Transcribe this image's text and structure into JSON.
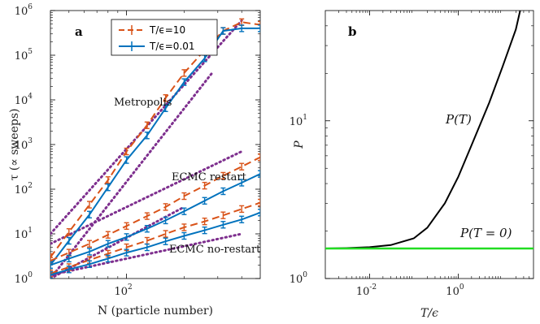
{
  "chart_data": [
    {
      "type": "line",
      "panel_label": "a",
      "xlabel": "N (particle number)",
      "ylabel": "τ (∝ sweeps)",
      "x_scale": "log",
      "y_scale": "log",
      "xlim": [
        40,
        500
      ],
      "ylim": [
        1,
        1000000
      ],
      "x_ticks": [
        {
          "value": 100,
          "label": "10",
          "exp": "2"
        }
      ],
      "y_ticks": [
        {
          "value": 1,
          "label": "10",
          "exp": "0"
        },
        {
          "value": 10,
          "label": "10",
          "exp": "1"
        },
        {
          "value": 100,
          "label": "10",
          "exp": "2"
        },
        {
          "value": 1000,
          "label": "10",
          "exp": "3"
        },
        {
          "value": 10000,
          "label": "10",
          "exp": "4"
        },
        {
          "value": 100000,
          "label": "10",
          "exp": "5"
        },
        {
          "value": 1000000,
          "label": "10",
          "exp": "6"
        }
      ],
      "legend": {
        "placement": "top",
        "entries": [
          {
            "text": "T/ϵ=10",
            "color": "#D95319",
            "style": "dashed"
          },
          {
            "text": "T/ϵ=0.01",
            "color": "#0072BD",
            "style": "solid"
          }
        ]
      },
      "annotations": [
        "Metropolis",
        "ECMC restart",
        "ECMC no-restart"
      ],
      "series": [
        {
          "group": "Metropolis",
          "T": "10",
          "color": "#D95319",
          "style": "dashed",
          "x": [
            40,
            50,
            64,
            80,
            100,
            128,
            160,
            200,
            256,
            320,
            400,
            500
          ],
          "y": [
            3,
            11,
            45,
            160,
            700,
            2700,
            11000,
            40000,
            130000,
            350000,
            550000,
            480000
          ]
        },
        {
          "group": "Metropolis",
          "T": "0.01",
          "color": "#0072BD",
          "style": "solid",
          "x": [
            40,
            50,
            64,
            80,
            100,
            128,
            160,
            200,
            256,
            320,
            400,
            500
          ],
          "y": [
            2,
            7,
            27,
            110,
            450,
            1600,
            6500,
            25000,
            85000,
            350000,
            400000,
            400000
          ]
        },
        {
          "group": "ECMC restart",
          "T": "10",
          "color": "#D95319",
          "style": "dashed",
          "x": [
            40,
            50,
            64,
            80,
            100,
            128,
            160,
            200,
            256,
            320,
            400,
            500
          ],
          "y": [
            2.5,
            3.8,
            6,
            9.5,
            15,
            25,
            40,
            70,
            120,
            200,
            320,
            520
          ]
        },
        {
          "group": "ECMC restart",
          "T": "0.01",
          "color": "#0072BD",
          "style": "solid",
          "x": [
            40,
            50,
            64,
            80,
            100,
            128,
            160,
            200,
            256,
            320,
            400,
            500
          ],
          "y": [
            2,
            2.8,
            4,
            6,
            8.5,
            13,
            20,
            32,
            55,
            90,
            140,
            220
          ]
        },
        {
          "group": "ECMC no-restart",
          "T": "10",
          "color": "#D95319",
          "style": "dashed",
          "x": [
            40,
            50,
            64,
            80,
            100,
            128,
            160,
            200,
            256,
            320,
            400,
            500
          ],
          "y": [
            1.3,
            1.8,
            2.6,
            3.6,
            5,
            7,
            10,
            14,
            19,
            26,
            36,
            50
          ]
        },
        {
          "group": "ECMC no-restart",
          "T": "0.01",
          "color": "#0072BD",
          "style": "solid",
          "x": [
            40,
            50,
            64,
            80,
            100,
            128,
            160,
            200,
            256,
            320,
            400,
            500
          ],
          "y": [
            1.2,
            1.6,
            2.1,
            2.8,
            3.8,
            5,
            6.8,
            9,
            12,
            16,
            21,
            30
          ]
        }
      ],
      "reference_lines": [
        {
          "group": "Metropolis",
          "color": "#7E2F8E",
          "style": "dotted",
          "x": [
            40,
            400
          ],
          "y": [
            10,
            600000
          ]
        },
        {
          "group": "Metropolis",
          "color": "#7E2F8E",
          "style": "dotted",
          "x": [
            40,
            280
          ],
          "y": [
            1,
            40000
          ]
        },
        {
          "group": "ECMC restart",
          "color": "#7E2F8E",
          "style": "dotted",
          "x": [
            40,
            400
          ],
          "y": [
            6,
            700
          ]
        },
        {
          "group": "ECMC restart",
          "color": "#7E2F8E",
          "style": "dotted",
          "x": [
            40,
            200
          ],
          "y": [
            1,
            40
          ]
        },
        {
          "group": "ECMC no-restart",
          "color": "#7E2F8E",
          "style": "dotted",
          "x": [
            40,
            400
          ],
          "y": [
            1.2,
            10
          ]
        }
      ]
    },
    {
      "type": "line",
      "panel_label": "b",
      "xlabel": "T/ϵ",
      "ylabel": "P",
      "x_scale": "log",
      "y_scale": "log",
      "xlim": [
        0.001,
        50
      ],
      "ylim": [
        1,
        50
      ],
      "x_ticks": [
        {
          "value": 0.01,
          "label": "10",
          "exp": "-2"
        },
        {
          "value": 1,
          "label": "10",
          "exp": "0"
        }
      ],
      "y_ticks": [
        {
          "value": 1,
          "label": "10",
          "exp": "0"
        },
        {
          "value": 10,
          "label": "10",
          "exp": "1"
        }
      ],
      "series": [
        {
          "name": "P(T)",
          "color": "#000000",
          "style": "solid",
          "x": [
            0.001,
            0.003,
            0.01,
            0.03,
            0.1,
            0.2,
            0.5,
            1,
            2,
            5,
            10,
            20,
            25
          ],
          "y": [
            1.55,
            1.56,
            1.58,
            1.63,
            1.8,
            2.1,
            3.0,
            4.4,
            7.0,
            13,
            22,
            38,
            50
          ]
        },
        {
          "name": "P(T = 0)",
          "color": "#22DD22",
          "style": "solid",
          "x": [
            0.001,
            50
          ],
          "y": [
            1.55,
            1.55
          ]
        }
      ]
    }
  ]
}
